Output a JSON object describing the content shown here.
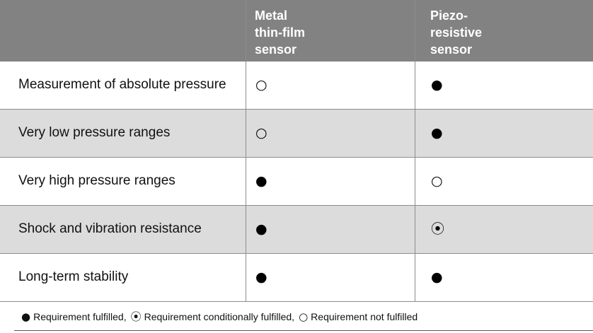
{
  "table": {
    "columns": [
      [
        "Metal",
        "thin-film",
        "sensor"
      ],
      [
        "Piezo-",
        "resistive",
        "sensor"
      ]
    ],
    "rows": [
      {
        "label": "Measurement of absolute pressure",
        "cells": [
          "○",
          "●"
        ]
      },
      {
        "label": "Very low pressure ranges",
        "cells": [
          "○",
          "●"
        ]
      },
      {
        "label": "Very high pressure ranges",
        "cells": [
          "●",
          "○"
        ]
      },
      {
        "label": "Shock and vibration resistance",
        "cells": [
          "●",
          "⦿"
        ]
      },
      {
        "label": "Long-term stability",
        "cells": [
          "●",
          "●"
        ]
      }
    ]
  },
  "legend": [
    {
      "symbol": "●",
      "label": "Requirement fulfilled,"
    },
    {
      "symbol": "⦿",
      "label": "Requirement conditionally fulfilled,"
    },
    {
      "symbol": "○",
      "label": "Requirement not fulfilled"
    }
  ]
}
